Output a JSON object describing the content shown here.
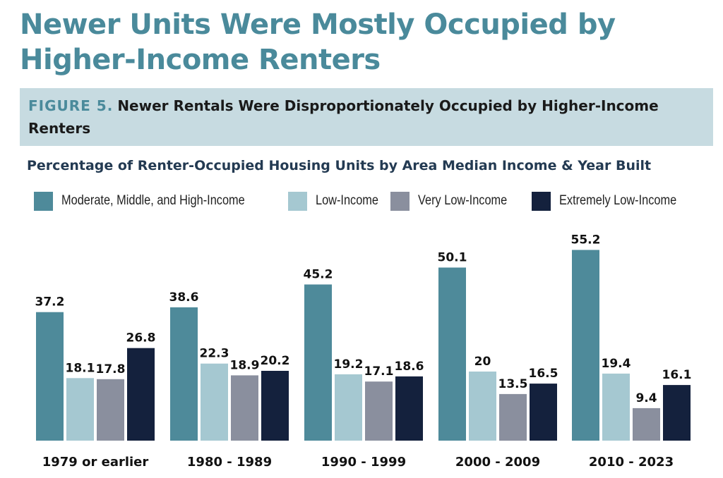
{
  "page": {
    "title": "Newer Units Were Mostly Occupied by Higher-Income Renters",
    "figure_label": "FIGURE 5.",
    "figure_caption": "Newer Rentals Were Disproportionately Occupied by Higher-Income Renters"
  },
  "colors": {
    "title": "#4a8a9b",
    "figure_label": "#4a8a9b",
    "figure_box": "#c7dbe1",
    "chart_title": "#233a52"
  },
  "chart_data": {
    "type": "bar",
    "title": "Percentage of Renter-Occupied Housing Units by Area Median Income & Year Built",
    "xlabel": "",
    "ylabel": "",
    "ylim": [
      0,
      60
    ],
    "grid": false,
    "legend_position": "top",
    "categories": [
      "1979 or earlier",
      "1980 - 1989",
      "1990 - 1999",
      "2000 - 2009",
      "2010 - 2023"
    ],
    "series": [
      {
        "name": "Moderate, Middle, and High-Income",
        "color": "#4e8a9a",
        "values": [
          37.2,
          38.6,
          45.2,
          50.1,
          55.2
        ],
        "labels": [
          "37.2",
          "38.6",
          "45.2",
          "50.1",
          "55.2"
        ]
      },
      {
        "name": "Low-Income",
        "color": "#a5c8d1",
        "values": [
          18.1,
          22.3,
          19.2,
          20,
          19.4
        ],
        "labels": [
          "18.1",
          "22.3",
          "19.2",
          "20",
          "19.4"
        ]
      },
      {
        "name": "Very Low-Income",
        "color": "#8a8f9e",
        "values": [
          17.8,
          18.9,
          17.1,
          13.5,
          9.4
        ],
        "labels": [
          "17.8",
          "18.9",
          "17.1",
          "13.5",
          "9.4"
        ]
      },
      {
        "name": "Extremely Low-Income",
        "color": "#14213d",
        "values": [
          26.8,
          20.2,
          18.6,
          16.5,
          16.1
        ],
        "labels": [
          "26.8",
          "20.2",
          "18.6",
          "16.5",
          "16.1"
        ]
      }
    ]
  }
}
